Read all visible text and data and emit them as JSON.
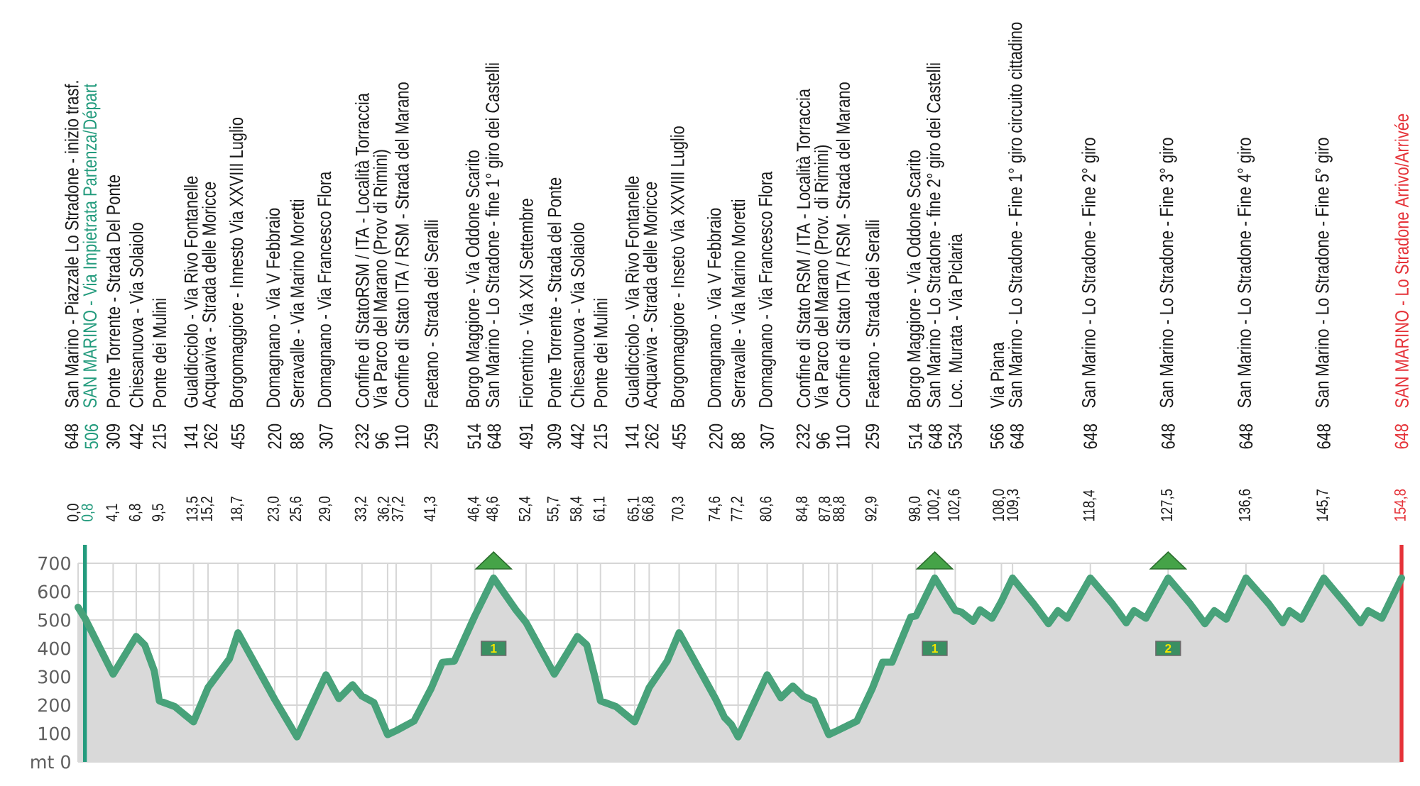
{
  "chart_data": {
    "type": "area",
    "series": [
      {
        "color": "#48a27a",
        "x": [
          0,
          0.8,
          4.1,
          6.8,
          7.8,
          8.9,
          9.5,
          11.3,
          13.5,
          15.2,
          17.7,
          18.7,
          23.0,
          25.6,
          29.0,
          30.5,
          32.1,
          33.2,
          34.6,
          36.2,
          37.2,
          39.3,
          41.3,
          42.6,
          44.0,
          46.4,
          48.6,
          51.2,
          52.4,
          55.7,
          58.4,
          59.5,
          60.4,
          61.1,
          62.9,
          65.1,
          66.8,
          68.9,
          70.3,
          74.6,
          75.6,
          76.4,
          77.2,
          80.6,
          82.2,
          83.6,
          84.8,
          86.1,
          87.8,
          88.8,
          91.1,
          92.9,
          94.1,
          95.2,
          97.4,
          98.0,
          100.2,
          102.6,
          103.3,
          104.7,
          105.5,
          106.9,
          108.0,
          109.3,
          111.8,
          113.5,
          114.6,
          115.7,
          118.4,
          121.0,
          122.6,
          123.5,
          124.9,
          127.5,
          130.1,
          131.8,
          132.9,
          134.3,
          136.6,
          139.3,
          140.9,
          141.7,
          143.1,
          145.7,
          148.4,
          150.0,
          150.9,
          152.5,
          154.8
        ],
        "values": [
          545,
          506,
          309,
          442,
          412,
          322,
          215,
          195,
          141,
          262,
          363,
          455,
          220,
          88,
          307,
          223,
          272,
          232,
          209,
          96,
          110,
          144,
          259,
          351,
          355,
          514,
          648,
          536,
          491,
          309,
          442,
          412,
          305,
          215,
          195,
          141,
          262,
          355,
          455,
          220,
          157,
          132,
          88,
          307,
          226,
          267,
          232,
          214,
          96,
          110,
          144,
          259,
          351,
          351,
          511,
          514,
          648,
          534,
          528,
          495,
          536,
          506,
          566,
          648,
          556,
          487,
          533,
          506,
          648,
          556,
          490,
          533,
          506,
          648,
          556,
          487,
          533,
          503,
          648,
          556,
          490,
          533,
          503,
          648,
          551,
          490,
          533,
          506,
          648
        ]
      },
      {
        "type": "scatter",
        "color": "#45a348",
        "marker": "triangle",
        "x": [
          48.6,
          100.2,
          127.5
        ],
        "values": [
          700,
          700,
          700
        ]
      }
    ],
    "xlim": [
      0,
      154.8
    ],
    "ylim": [
      0,
      700
    ],
    "xticks": [
      {
        "value": 0,
        "label": "0,0"
      },
      {
        "value": 0.8,
        "label": "0,8"
      },
      {
        "value": 4.1,
        "label": "4,1"
      },
      {
        "value": 6.8,
        "label": "6,8"
      },
      {
        "value": 9.5,
        "label": "9,5"
      },
      {
        "value": 13.5,
        "label": "13,5"
      },
      {
        "value": 15.2,
        "label": "15,2"
      },
      {
        "value": 18.7,
        "label": "18,7"
      },
      {
        "value": 23.0,
        "label": "23,0"
      },
      {
        "value": 25.6,
        "label": "25,6"
      },
      {
        "value": 29.0,
        "label": "29,0"
      },
      {
        "value": 33.2,
        "label": "33,2"
      },
      {
        "value": 36.2,
        "label": "36,2"
      },
      {
        "value": 37.2,
        "label": "37,2"
      },
      {
        "value": 41.3,
        "label": "41,3"
      },
      {
        "value": 46.4,
        "label": "46,4"
      },
      {
        "value": 48.6,
        "label": "48,6"
      },
      {
        "value": 52.4,
        "label": "52,4"
      },
      {
        "value": 55.7,
        "label": "55,7"
      },
      {
        "value": 58.4,
        "label": "58,4"
      },
      {
        "value": 61.1,
        "label": "61,1"
      },
      {
        "value": 65.1,
        "label": "65,1"
      },
      {
        "value": 66.8,
        "label": "66,8"
      },
      {
        "value": 70.3,
        "label": "70,3"
      },
      {
        "value": 74.6,
        "label": "74,6"
      },
      {
        "value": 77.2,
        "label": "77,2"
      },
      {
        "value": 80.6,
        "label": "80,6"
      },
      {
        "value": 84.8,
        "label": "84,8"
      },
      {
        "value": 87.8,
        "label": "87,8"
      },
      {
        "value": 88.8,
        "label": "88,8"
      },
      {
        "value": 92.9,
        "label": "92,9"
      },
      {
        "value": 98.0,
        "label": "98,0"
      },
      {
        "value": 100.2,
        "label": "100,2"
      },
      {
        "value": 102.6,
        "label": "102,6"
      },
      {
        "value": 108.0,
        "label": "108,0"
      },
      {
        "value": 109.3,
        "label": "109,3"
      },
      {
        "value": 118.4,
        "label": "118,4"
      },
      {
        "value": 127.5,
        "label": "127,5"
      },
      {
        "value": 136.6,
        "label": "136,6"
      },
      {
        "value": 145.7,
        "label": "145,7"
      },
      {
        "value": 154.8,
        "label": "154,8"
      }
    ],
    "yticks": [
      {
        "value": 0,
        "label": "mt 0"
      },
      100,
      200,
      300,
      400,
      500,
      600,
      700
    ],
    "grid": true,
    "ref_lines": [
      {
        "axis": "x",
        "value": 0.8,
        "color": "#239b7d"
      },
      {
        "axis": "x",
        "value": 154.8,
        "color": "#e53238"
      }
    ],
    "annotations": [
      "648",
      "San Marino - Piazzale Lo Stradone - inizio trasf.",
      "506",
      "SAN MARINO - Via Impietrata Partenza/Départ",
      "309",
      "Ponte Torrente - Strada Del Ponte",
      "442",
      "Chiesanuova - Via Solaiolo",
      "215",
      "Ponte dei Mulini",
      "141",
      "Gualdicciolo - Via Rivo Fontanelle",
      "262",
      "Acquaviva - Strada delle Moricce",
      "455",
      "Borgomaggiore - Innesto Via XXVIII Luglio",
      "220",
      "Domagnano - Via V Febbraio",
      "88",
      "Serravalle - Via Marino Moretti",
      "307",
      "Domagnano - Via Francesco Flora",
      "232",
      "Confine di StatoRSM / ITA - Località Torraccia",
      "96",
      "Via Parco del Marano (Prov di Rimini)",
      "110",
      "Confine di Stato ITA / RSM - Strada del Marano",
      "259",
      "Faetano - Strada dei Seralli",
      "514",
      "Borgo Maggiore - Via Oddone Scarito",
      "648",
      "San Marino - Lo Stradone - fine 1° giro dei Castelli",
      "491",
      "Fiorentino - Via XXI Settembre",
      "309",
      "Ponte Torrente - Strada del Ponte",
      "442",
      "Chiesanuova - Via Solaiolo",
      "215",
      "Ponte dei Mulini",
      "141",
      "Gualdicciolo - Via Rivo Fontanelle",
      "262",
      "Acquaviva - Strada delle Moricce",
      "455",
      "Borgomaggiore - Inseto Via XXVIII Luglio",
      "220",
      "Domagnano - Via V Febbraio",
      "88",
      "Serravalle - Via Marino Moretti",
      "307",
      "Domagnano - Via Francesco Flora",
      "232",
      "Confine di Stato RSM / ITA - Località Torraccia",
      "96",
      "Via Parco del Marano (Prov. di Rimini)",
      "110",
      "Confine di Stato ITA / RSM - Strada del Marano",
      "259",
      "Faetano - Strada dei Seralli",
      "514",
      "Borgo Maggiore - Via Oddone Scarito",
      "648",
      "San Marino - Lo Stradone - fine 2° giro dei Castelli",
      "534",
      "Loc. Murata - Via Piclaria",
      "566",
      "Via Piana",
      "648",
      "San Marino - Lo Stradone - Fine 1° giro circuito cittadino",
      "648",
      "San Marino - Lo Stradone - Fine 2° giro",
      "648",
      "San Marino - Lo Stradone - Fine 3° giro",
      "648",
      "San Marino - Lo Stradone - Fine 4° giro",
      "648",
      "San Marino - Lo Stradone - Fine 5° giro",
      "648",
      "SAN MARINO - Lo Stradone Arrivo/Arrivée",
      {
        "text": "1",
        "x": 48.6,
        "y": 400
      },
      {
        "text": "1",
        "x": 100.2,
        "y": 400
      },
      {
        "text": "2",
        "x": 127.5,
        "y": 400
      }
    ]
  }
}
